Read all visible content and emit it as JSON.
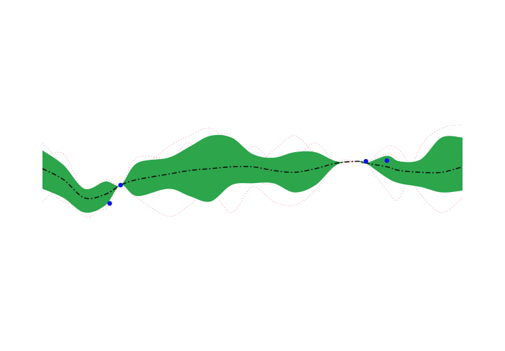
{
  "chart_data": {
    "type": "area",
    "title": "",
    "xlabel": "",
    "ylabel": "",
    "axes_visible": false,
    "grid": false,
    "xlim": [
      0,
      10
    ],
    "ylim": [
      -3,
      3
    ],
    "colors": {
      "band": "#2ca54b",
      "mean": "#111111",
      "observations": "#0a14e6",
      "samples": "#f08ca0"
    },
    "x": [
      0,
      0.5,
      1,
      1.5,
      1.86,
      2.25,
      3,
      3.5,
      4,
      4.5,
      5,
      5.5,
      6,
      6.5,
      7,
      7.5,
      7.7,
      8.2,
      8.5,
      9,
      9.5,
      10
    ],
    "series": [
      {
        "role": "mean",
        "values": [
          0.0,
          -0.3,
          -0.8,
          -0.7,
          -0.45,
          -0.3,
          -0.15,
          -0.05,
          0.0,
          0.05,
          0.05,
          -0.05,
          -0.1,
          0.0,
          0.15,
          0.2,
          0.15,
          0.05,
          -0.05,
          -0.1,
          -0.1,
          0.05
        ]
      },
      {
        "role": "band-upper",
        "values": [
          0.5,
          0.1,
          -0.55,
          -0.35,
          -0.45,
          0.15,
          0.3,
          0.6,
          0.9,
          0.85,
          0.4,
          0.3,
          0.45,
          0.45,
          0.2,
          0.2,
          0.15,
          0.35,
          0.2,
          0.25,
          0.85,
          0.85
        ]
      },
      {
        "role": "band-lower",
        "values": [
          -0.55,
          -0.8,
          -1.2,
          -1.0,
          -0.45,
          -0.75,
          -0.55,
          -0.75,
          -0.9,
          -0.45,
          -0.4,
          -0.4,
          -0.65,
          -0.45,
          0.1,
          0.2,
          0.15,
          -0.25,
          -0.4,
          -0.5,
          -0.65,
          -0.6
        ]
      },
      {
        "role": "sample",
        "values": [
          0.7,
          0.0,
          -1.3,
          -0.9,
          -0.45,
          -0.1,
          0.6,
          0.9,
          1.1,
          0.6,
          0.1,
          0.5,
          0.9,
          0.4,
          0.18,
          0.2,
          0.15,
          -0.6,
          -0.8,
          0.6,
          1.1,
          1.2
        ]
      },
      {
        "role": "sample",
        "values": [
          -0.4,
          -0.9,
          -0.95,
          -0.5,
          -0.45,
          -0.8,
          -1.3,
          -1.0,
          -0.6,
          -1.2,
          -0.5,
          -0.9,
          -1.0,
          -0.6,
          0.12,
          0.2,
          0.15,
          0.4,
          0.2,
          -0.7,
          -1.2,
          -0.8
        ]
      },
      {
        "role": "sample",
        "values": [
          0.3,
          0.4,
          -0.6,
          -0.3,
          -0.45,
          0.3,
          0.2,
          -0.3,
          0.7,
          0.9,
          -0.2,
          -0.4,
          0.2,
          0.7,
          0.15,
          0.2,
          0.15,
          0.6,
          0.5,
          -0.2,
          0.3,
          -0.1
        ]
      },
      {
        "role": "sample",
        "values": [
          -0.9,
          -0.5,
          -1.0,
          -1.1,
          -0.45,
          -0.6,
          0.1,
          0.7,
          -0.3,
          -0.2,
          0.6,
          0.1,
          -0.5,
          -0.3,
          0.2,
          0.2,
          0.15,
          -0.1,
          -0.3,
          0.2,
          -0.3,
          0.6
        ]
      }
    ],
    "observations": {
      "x": [
        1.6,
        1.86,
        7.7,
        8.2
      ],
      "y": [
        -0.95,
        -0.45,
        0.2,
        0.22
      ]
    }
  }
}
